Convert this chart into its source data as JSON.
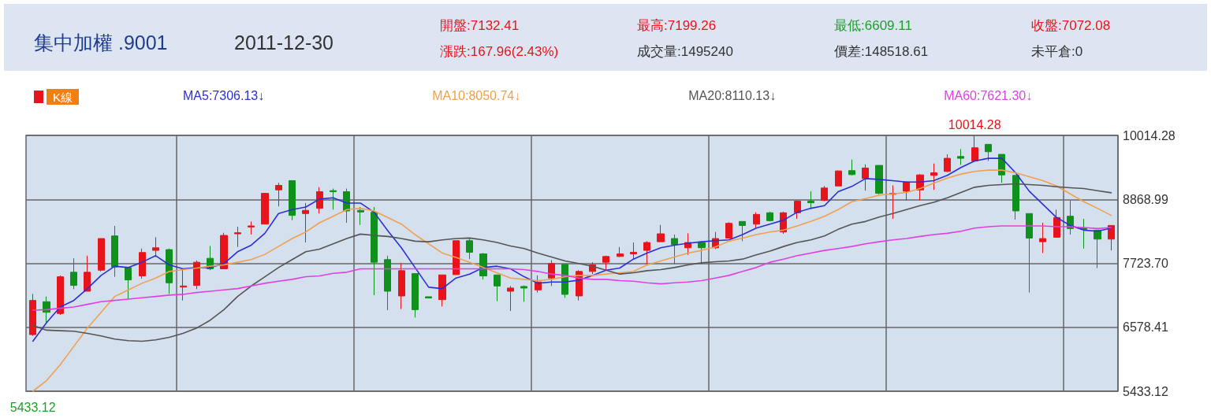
{
  "chart_data": {
    "type": "candlestick",
    "title": "集中加權 .9001",
    "subtitle": "2011-12-30",
    "categories": [
      null,
      null,
      null,
      null,
      null,
      null,
      null,
      null,
      null,
      null,
      null,
      null,
      null,
      null,
      null,
      null,
      null,
      null,
      null,
      null,
      null,
      null,
      null,
      null,
      null,
      null,
      null,
      null,
      null,
      null,
      null,
      null,
      null,
      null,
      null,
      null,
      null,
      null,
      null,
      null,
      null,
      null,
      null,
      null,
      null,
      null,
      null,
      null,
      null,
      null,
      null,
      null,
      null,
      null,
      null,
      null,
      null,
      null,
      null,
      null,
      null,
      null,
      null,
      null,
      null,
      null,
      null,
      null,
      null,
      null,
      null,
      null,
      null,
      null,
      null,
      null,
      null,
      null,
      null,
      null
    ],
    "series": [
      {
        "name": "K線",
        "ohlc": [
          [
            6447,
            7177,
            6423,
            7059
          ],
          [
            7036,
            7130,
            6659,
            6847
          ],
          [
            6824,
            7507,
            6800,
            7483
          ],
          [
            7564,
            7813,
            7262,
            7328
          ],
          [
            7224,
            7860,
            7224,
            7564
          ],
          [
            7601,
            8167,
            7578,
            8167
          ],
          [
            8214,
            8393,
            7483,
            7658
          ],
          [
            7648,
            7648,
            7083,
            7427
          ],
          [
            7498,
            7988,
            7450,
            7917
          ],
          [
            7955,
            8190,
            7837,
            8002
          ],
          [
            7969,
            7988,
            7177,
            7375
          ],
          [
            7300,
            7625,
            7059,
            7318
          ],
          [
            7328,
            7776,
            7262,
            7743
          ],
          [
            7813,
            8035,
            7601,
            7625
          ],
          [
            7625,
            8271,
            7625,
            8223
          ],
          [
            8252,
            8379,
            8016,
            8271
          ],
          [
            8374,
            8473,
            8238,
            8393
          ],
          [
            8426,
            8977,
            8426,
            8977
          ],
          [
            9039,
            9166,
            8742,
            9119
          ],
          [
            9204,
            9204,
            8497,
            8582
          ],
          [
            8615,
            8803,
            8096,
            8671
          ],
          [
            8709,
            9086,
            8615,
            9006
          ],
          [
            9025,
            9062,
            8685,
            9006
          ],
          [
            9006,
            9062,
            8450,
            8662
          ],
          [
            8671,
            8732,
            8412,
            8643
          ],
          [
            8638,
            8732,
            7154,
            7743
          ],
          [
            7790,
            7860,
            6885,
            7224
          ],
          [
            7139,
            7733,
            6904,
            7592
          ],
          [
            7540,
            7540,
            6753,
            6894
          ],
          [
            7125,
            7125,
            7102,
            7102
          ],
          [
            7073,
            7516,
            6951,
            7516
          ],
          [
            7521,
            8129,
            7521,
            8129
          ],
          [
            8129,
            8167,
            7799,
            7922
          ],
          [
            7893,
            7908,
            7436,
            7498
          ],
          [
            7516,
            7516,
            7045,
            7318
          ],
          [
            7224,
            7318,
            6871,
            7281
          ],
          [
            7309,
            7328,
            7036,
            7281
          ],
          [
            7248,
            7507,
            7201,
            7389
          ],
          [
            7460,
            7780,
            7318,
            7719
          ],
          [
            7705,
            7705,
            7106,
            7168
          ],
          [
            7139,
            7601,
            7059,
            7578
          ],
          [
            7578,
            7743,
            7531,
            7695
          ],
          [
            7743,
            7860,
            7601,
            7846
          ],
          [
            7846,
            8016,
            7837,
            7893
          ],
          [
            7893,
            8096,
            7790,
            7922
          ],
          [
            7955,
            8120,
            7710,
            8096
          ],
          [
            8110,
            8412,
            8110,
            8252
          ],
          [
            8167,
            8238,
            7710,
            8063
          ],
          [
            8002,
            8261,
            7875,
            8096
          ],
          [
            8096,
            8120,
            7710,
            8002
          ],
          [
            8002,
            8285,
            7978,
            8167
          ],
          [
            8176,
            8459,
            8167,
            8440
          ],
          [
            8473,
            8473,
            8120,
            8402
          ],
          [
            8426,
            8638,
            8355,
            8600
          ],
          [
            8629,
            8648,
            8473,
            8487
          ],
          [
            8285,
            8648,
            8252,
            8629
          ],
          [
            8629,
            8850,
            8520,
            8836
          ],
          [
            8836,
            9015,
            8695,
            8808
          ],
          [
            8850,
            9109,
            8836,
            9072
          ],
          [
            9109,
            9383,
            9109,
            9378
          ],
          [
            9383,
            9581,
            9298,
            9312
          ],
          [
            9241,
            9496,
            9025,
            9430
          ],
          [
            9477,
            9477,
            8959,
            8977
          ],
          [
            8959,
            9119,
            8520,
            8977
          ],
          [
            9015,
            9180,
            8850,
            9180
          ],
          [
            9039,
            9322,
            8850,
            9307
          ],
          [
            9298,
            9510,
            9039,
            9345
          ],
          [
            9369,
            9675,
            9355,
            9604
          ],
          [
            9637,
            9769,
            9486,
            9604
          ],
          [
            9557,
            10014.28,
            9543,
            9793
          ],
          [
            9854,
            9854,
            9557,
            9722
          ],
          [
            9675,
            9675,
            9166,
            9307
          ],
          [
            9298,
            9298,
            8506,
            8662
          ],
          [
            8615,
            8615,
            7201,
            8176
          ],
          [
            8110,
            8450,
            7908,
            8167
          ],
          [
            8190,
            8685,
            8190,
            8544
          ],
          [
            8567,
            8850,
            8238,
            8346
          ],
          [
            8355,
            8520,
            7988,
            8332
          ],
          [
            8318,
            8318,
            7639,
            8157
          ],
          [
            8157,
            8402,
            7955,
            8402
          ]
        ]
      },
      {
        "name": "MA5:7306.13↓",
        "type": "line",
        "color": "#2b2fd6",
        "values": [
          6329,
          6659,
          6941,
          7059,
          7271,
          7507,
          7672,
          7648,
          7743,
          7860,
          7696,
          7625,
          7648,
          7648,
          7719,
          7931,
          8049,
          8261,
          8615,
          8685,
          8732,
          8874,
          8897,
          8803,
          8803,
          8638,
          8308,
          8002,
          7648,
          7295,
          7271,
          7460,
          7531,
          7648,
          7672,
          7625,
          7483,
          7366,
          7389,
          7389,
          7422,
          7507,
          7601,
          7639,
          7799,
          7908,
          8002,
          8049,
          8082,
          8110,
          8129,
          8143,
          8238,
          8355,
          8426,
          8497,
          8638,
          8709,
          8756,
          9006,
          9100,
          9241,
          9227,
          9204,
          9180,
          9180,
          9204,
          9298,
          9439,
          9557,
          9604,
          9604,
          9345,
          9015,
          8780,
          8544,
          8402,
          8318,
          8299,
          8355
        ]
      },
      {
        "name": "MA10:8050.74↓",
        "type": "line",
        "color": "#f0a050",
        "values": [
          5433.12,
          5622,
          5905,
          6235,
          6564,
          6847,
          7130,
          7248,
          7366,
          7460,
          7578,
          7611,
          7639,
          7672,
          7696,
          7743,
          7790,
          7884,
          8025,
          8167,
          8285,
          8450,
          8567,
          8685,
          8709,
          8662,
          8544,
          8426,
          8238,
          8073,
          7908,
          7828,
          7743,
          7648,
          7554,
          7460,
          7436,
          7413,
          7436,
          7483,
          7507,
          7507,
          7531,
          7554,
          7578,
          7696,
          7766,
          7837,
          7908,
          7955,
          8016,
          8120,
          8176,
          8238,
          8285,
          8318,
          8393,
          8473,
          8567,
          8685,
          8827,
          8883,
          8944,
          8968,
          8992,
          9062,
          9157,
          9251,
          9322,
          9369,
          9392,
          9392,
          9345,
          9274,
          9204,
          9109,
          8968,
          8827,
          8709,
          8582
        ]
      },
      {
        "name": "MA20:8110.13↓",
        "type": "line",
        "color": "#555555",
        "values": [
          6612,
          6527,
          6517,
          6508,
          6470,
          6423,
          6366,
          6338,
          6329,
          6352,
          6399,
          6470,
          6564,
          6706,
          6894,
          7130,
          7318,
          7483,
          7648,
          7790,
          7931,
          7978,
          8073,
          8167,
          8247,
          8223,
          8205,
          8167,
          8120,
          8110,
          8143,
          8167,
          8176,
          8143,
          8096,
          8035,
          7988,
          7908,
          7837,
          7766,
          7719,
          7672,
          7601,
          7531,
          7554,
          7592,
          7611,
          7648,
          7696,
          7733,
          7752,
          7766,
          7799,
          7875,
          7941,
          8025,
          8096,
          8143,
          8214,
          8332,
          8426,
          8473,
          8553,
          8615,
          8685,
          8756,
          8817,
          8897,
          8992,
          9086,
          9119,
          9133,
          9147,
          9133,
          9119,
          9095,
          9076,
          9062,
          9025,
          8987
        ]
      },
      {
        "name": "MA60:7621.30↓",
        "type": "line",
        "color": "#e040e0",
        "values": [
          6885,
          6894,
          6918,
          6941,
          6989,
          7036,
          7059,
          7083,
          7106,
          7130,
          7154,
          7168,
          7201,
          7224,
          7248,
          7271,
          7318,
          7366,
          7403,
          7436,
          7483,
          7498,
          7545,
          7564,
          7625,
          7625,
          7625,
          7625,
          7625,
          7625,
          7625,
          7625,
          7625,
          7625,
          7625,
          7625,
          7611,
          7578,
          7531,
          7507,
          7460,
          7436,
          7436,
          7413,
          7403,
          7375,
          7356,
          7375,
          7389,
          7413,
          7460,
          7507,
          7578,
          7648,
          7743,
          7799,
          7860,
          7908,
          7955,
          7988,
          8025,
          8073,
          8110,
          8143,
          8167,
          8205,
          8238,
          8261,
          8299,
          8355,
          8379,
          8393,
          8393,
          8393,
          8393,
          8379,
          8379,
          8365,
          8346,
          8365
        ]
      }
    ],
    "ylim": [
      5433.12,
      10014.28
    ],
    "yticks": [
      5433.12,
      6578.41,
      {
        "value": 7723.7,
        "label": "7723.70"
      },
      8868.99,
      10014.28
    ],
    "tick_labels": "y",
    "grid": true,
    "legend": "top",
    "marker": "none",
    "annotations": [
      "開盤:7132.41",
      "最高:7199.26",
      "最低:6609.11",
      "收盤:7072.08",
      "漲跌:167.96(2.43%)",
      "成交量:1495240",
      "價差:148518.61",
      "未平倉:0",
      {
        "text": "10014.28",
        "y": 10014.28
      },
      {
        "text": "5433.12",
        "y": 5433.12
      }
    ]
  }
}
